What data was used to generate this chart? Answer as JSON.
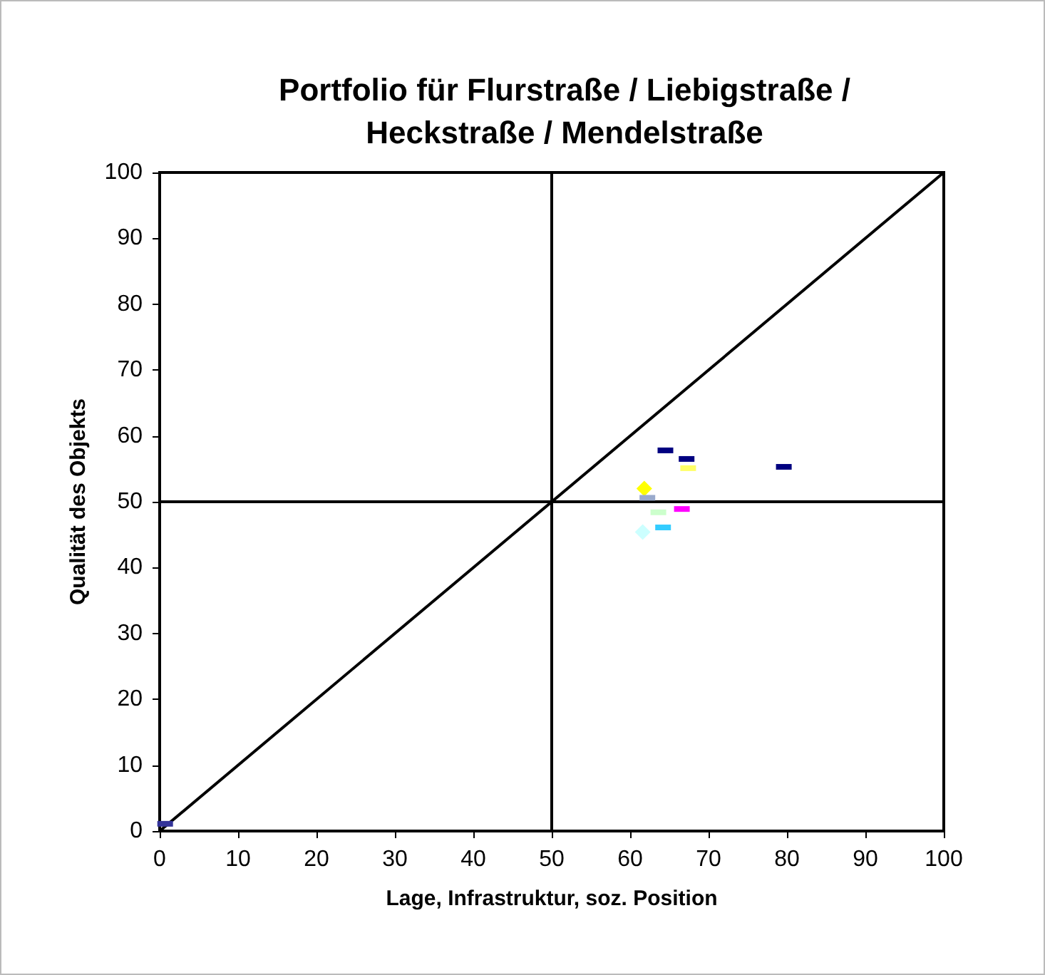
{
  "chart_data": {
    "type": "scatter",
    "title": "Portfolio für Flurstraße / Liebigstraße /\nHeckstraße / Mendelstraße",
    "xlabel": "Lage, Infrastruktur, soz. Position",
    "ylabel": "Qualität des Objekts",
    "xlim": [
      0,
      100
    ],
    "ylim": [
      0,
      100
    ],
    "xticks": [
      0,
      10,
      20,
      30,
      40,
      50,
      60,
      70,
      80,
      90,
      100
    ],
    "yticks": [
      0,
      10,
      20,
      30,
      40,
      50,
      60,
      70,
      80,
      90,
      100
    ],
    "grid": false,
    "series": [
      {
        "type": "line",
        "color": "#000000",
        "x": [
          50,
          50
        ],
        "values": [
          0,
          100
        ],
        "marker": "none"
      },
      {
        "type": "line",
        "color": "#000000",
        "x": [
          0,
          100
        ],
        "values": [
          50,
          50
        ],
        "marker": "none"
      },
      {
        "type": "line",
        "color": "#000000",
        "x": [
          0,
          100
        ],
        "values": [
          0,
          100
        ],
        "marker": "none"
      },
      {
        "color": "#000080",
        "x": [
          64.5
        ],
        "values": [
          57.8
        ],
        "marker": "square"
      },
      {
        "color": "#000080",
        "x": [
          67.2
        ],
        "values": [
          56.5
        ],
        "marker": "square"
      },
      {
        "color": "#ffff66",
        "x": [
          67.4
        ],
        "values": [
          55.1
        ],
        "marker": "square"
      },
      {
        "color": "#000080",
        "x": [
          79.6
        ],
        "values": [
          55.3
        ],
        "marker": "square"
      },
      {
        "color": "#ffff00",
        "x": [
          61.8
        ],
        "values": [
          52.0
        ],
        "marker": "diamond"
      },
      {
        "color": "#99aacc",
        "x": [
          62.2
        ],
        "values": [
          50.6
        ],
        "marker": "square"
      },
      {
        "color": "#ccffcc",
        "x": [
          63.6
        ],
        "values": [
          48.4
        ],
        "marker": "square"
      },
      {
        "color": "#ff00ff",
        "x": [
          66.6
        ],
        "values": [
          48.9
        ],
        "marker": "square"
      },
      {
        "color": "#33ccff",
        "x": [
          64.2
        ],
        "values": [
          46.1
        ],
        "marker": "square"
      },
      {
        "color": "#ccffff",
        "x": [
          61.6
        ],
        "values": [
          45.4
        ],
        "marker": "diamond"
      },
      {
        "color": "#333399",
        "x": [
          0.7
        ],
        "values": [
          1.1
        ],
        "marker": "square"
      }
    ]
  }
}
